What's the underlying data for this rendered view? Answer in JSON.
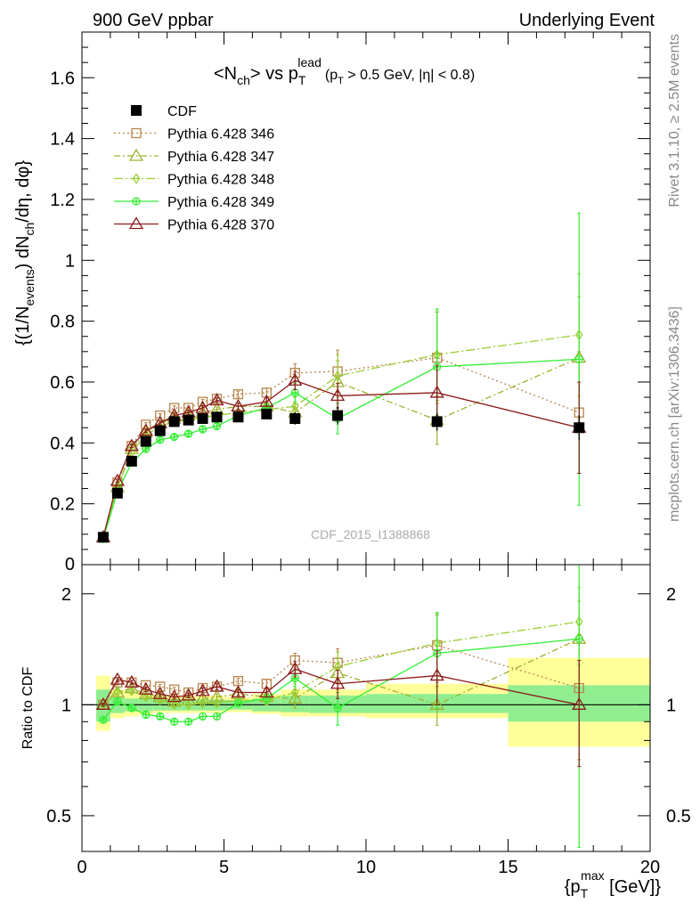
{
  "header": {
    "left": "900 GeV ppbar",
    "right": "Underlying Event"
  },
  "side_labels": {
    "rivet": "Rivet 3.1.10, ≥ 2.5M events",
    "mcplots": "mcplots.cern.ch [arXiv:1306.3436]"
  },
  "watermark": "CDF_2015_I1388868",
  "colors": {
    "cdf": "#000000",
    "p346": "#b8864b",
    "p347": "#a0b030",
    "p348": "#9acd32",
    "p349": "#33ee33",
    "p370": "#8b1a1a",
    "band_inner": "#90ee90",
    "band_outer": "#ffff99"
  },
  "chart_data": [
    {
      "type": "scatter",
      "title_main": "<N",
      "title_sub_ch": "ch",
      "title_vs": "> vs p",
      "title_sub_T": "T",
      "title_sup_lead": "lead",
      "title_cut_open": "(p",
      "title_cut_T": "T",
      "title_cut_rest": " > 0.5 GeV, |η| < 0.8)",
      "ylabel_parts": [
        "{(1/N",
        "events",
        ") dN",
        "ch",
        "/dη, dφ}"
      ],
      "xlim": [
        0,
        20
      ],
      "ylim": [
        0,
        1.75
      ],
      "yticks": [
        0.2,
        0.4,
        0.6,
        0.8,
        1,
        1.2,
        1.4,
        1.6
      ],
      "ytick_labels": [
        "0.2",
        "0.4",
        "0.6",
        "0.8",
        "1",
        "1.2",
        "1.4",
        "1.6"
      ],
      "bottom_tick_label": "0",
      "legend_position": "top-left",
      "series": [
        {
          "name": "CDF",
          "key": "cdf",
          "marker": "square-filled",
          "x": [
            0.75,
            1.25,
            1.75,
            2.25,
            2.75,
            3.25,
            3.75,
            4.25,
            4.75,
            5.5,
            6.5,
            7.5,
            9.0,
            12.5,
            17.5
          ],
          "y": [
            0.09,
            0.235,
            0.34,
            0.405,
            0.44,
            0.47,
            0.475,
            0.48,
            0.485,
            0.485,
            0.495,
            0.48,
            0.49,
            0.47,
            0.45
          ],
          "err": [
            0.005,
            0.008,
            0.01,
            0.012,
            0.012,
            0.012,
            0.012,
            0.012,
            0.012,
            0.014,
            0.016,
            0.02,
            0.03,
            0.03,
            0.04
          ]
        },
        {
          "name": "Pythia 6.428 346",
          "key": "p346",
          "marker": "square-open",
          "dash": "2,3",
          "x": [
            0.75,
            1.25,
            1.75,
            2.25,
            2.75,
            3.25,
            3.75,
            4.25,
            4.75,
            5.5,
            6.5,
            7.5,
            9.0,
            12.5,
            17.5
          ],
          "y": [
            0.09,
            0.27,
            0.39,
            0.46,
            0.49,
            0.515,
            0.515,
            0.535,
            0.545,
            0.56,
            0.565,
            0.63,
            0.635,
            0.68,
            0.5
          ],
          "err": [
            0.002,
            0.004,
            0.005,
            0.006,
            0.006,
            0.007,
            0.007,
            0.008,
            0.008,
            0.01,
            0.015,
            0.03,
            0.07,
            0.15,
            0.2
          ]
        },
        {
          "name": "Pythia 6.428 347",
          "key": "p347",
          "marker": "triangle-open",
          "dash": "7,3,2,3",
          "x": [
            0.75,
            1.25,
            1.75,
            2.25,
            2.75,
            3.25,
            3.75,
            4.25,
            4.75,
            5.5,
            6.5,
            7.5,
            9.0,
            12.5,
            17.5
          ],
          "y": [
            0.09,
            0.255,
            0.38,
            0.435,
            0.465,
            0.48,
            0.49,
            0.5,
            0.51,
            0.52,
            0.52,
            0.5,
            0.6,
            0.475,
            0.68
          ],
          "err": [
            0.002,
            0.004,
            0.005,
            0.006,
            0.006,
            0.007,
            0.007,
            0.008,
            0.008,
            0.01,
            0.015,
            0.03,
            0.07,
            0.08,
            0.2
          ]
        },
        {
          "name": "Pythia 6.428 348",
          "key": "p348",
          "marker": "diamond-open",
          "dash": "10,3,2,3",
          "x": [
            0.75,
            1.25,
            1.75,
            2.25,
            2.75,
            3.25,
            3.75,
            4.25,
            4.75,
            5.5,
            6.5,
            7.5,
            9.0,
            12.5,
            17.5
          ],
          "y": [
            0.09,
            0.255,
            0.37,
            0.425,
            0.455,
            0.47,
            0.475,
            0.485,
            0.49,
            0.5,
            0.51,
            0.52,
            0.62,
            0.69,
            0.755
          ],
          "err": [
            0.002,
            0.004,
            0.005,
            0.006,
            0.006,
            0.007,
            0.007,
            0.008,
            0.008,
            0.01,
            0.015,
            0.03,
            0.07,
            0.15,
            0.2
          ]
        },
        {
          "name": "Pythia 6.428 349",
          "key": "p349",
          "marker": "circle-cross",
          "x": [
            0.75,
            1.25,
            1.75,
            2.25,
            2.75,
            3.25,
            3.75,
            4.25,
            4.75,
            5.5,
            6.5,
            7.5,
            9.0,
            12.5,
            17.5
          ],
          "y": [
            0.085,
            0.24,
            0.335,
            0.38,
            0.41,
            0.42,
            0.43,
            0.445,
            0.455,
            0.49,
            0.515,
            0.565,
            0.48,
            0.65,
            0.675
          ],
          "err": [
            0.002,
            0.004,
            0.005,
            0.006,
            0.006,
            0.007,
            0.007,
            0.008,
            0.008,
            0.01,
            0.015,
            0.03,
            0.05,
            0.19,
            0.48
          ]
        },
        {
          "name": "Pythia 6.428 370",
          "key": "p370",
          "marker": "triangle-open",
          "x": [
            0.75,
            1.25,
            1.75,
            2.25,
            2.75,
            3.25,
            3.75,
            4.25,
            4.75,
            5.5,
            6.5,
            7.5,
            9.0,
            12.5,
            17.5
          ],
          "y": [
            0.09,
            0.275,
            0.39,
            0.44,
            0.465,
            0.49,
            0.5,
            0.515,
            0.54,
            0.52,
            0.535,
            0.605,
            0.555,
            0.565,
            0.45
          ],
          "err": [
            0.002,
            0.004,
            0.005,
            0.006,
            0.006,
            0.007,
            0.007,
            0.008,
            0.008,
            0.01,
            0.015,
            0.03,
            0.04,
            0.09,
            0.15
          ]
        }
      ]
    },
    {
      "type": "scatter",
      "ylabel": "Ratio to CDF",
      "xlabel_open": "{p",
      "xlabel_sub": "T",
      "xlabel_sup": "max",
      "xlabel_close": " [GeV]}",
      "xlim": [
        0,
        20
      ],
      "ylim": [
        0.4,
        2.4
      ],
      "y_scale": "log",
      "xticks": [
        0,
        5,
        10,
        15,
        20
      ],
      "xtick_labels": [
        "0",
        "5",
        "10",
        "15",
        "20"
      ],
      "yticks": [
        0.5,
        1,
        2
      ],
      "ytick_labels": [
        "0.5",
        "1",
        "2"
      ],
      "reference_line": 1,
      "bands": {
        "x_edges": [
          [
            0.5,
            1.0
          ],
          [
            1.0,
            1.5
          ],
          [
            1.5,
            2.0
          ],
          [
            2.0,
            2.5
          ],
          [
            2.5,
            3.0
          ],
          [
            3.0,
            3.5
          ],
          [
            3.5,
            4.0
          ],
          [
            4.0,
            4.5
          ],
          [
            4.5,
            5.0
          ],
          [
            5.0,
            6.0
          ],
          [
            6.0,
            7.0
          ],
          [
            7.0,
            8.0
          ],
          [
            8.0,
            10.0
          ],
          [
            10.0,
            15.0
          ],
          [
            15.0,
            20.0
          ]
        ],
        "inner": [
          [
            0.9,
            1.1
          ],
          [
            0.95,
            1.05
          ],
          [
            0.96,
            1.04
          ],
          [
            0.96,
            1.04
          ],
          [
            0.965,
            1.035
          ],
          [
            0.965,
            1.035
          ],
          [
            0.965,
            1.035
          ],
          [
            0.965,
            1.035
          ],
          [
            0.965,
            1.035
          ],
          [
            0.97,
            1.03
          ],
          [
            0.96,
            1.04
          ],
          [
            0.955,
            1.06
          ],
          [
            0.95,
            1.06
          ],
          [
            0.95,
            1.07
          ],
          [
            0.9,
            1.13
          ]
        ],
        "outer": [
          [
            0.85,
            1.2
          ],
          [
            0.92,
            1.1
          ],
          [
            0.93,
            1.08
          ],
          [
            0.94,
            1.07
          ],
          [
            0.95,
            1.06
          ],
          [
            0.95,
            1.06
          ],
          [
            0.95,
            1.06
          ],
          [
            0.95,
            1.06
          ],
          [
            0.95,
            1.06
          ],
          [
            0.955,
            1.05
          ],
          [
            0.945,
            1.07
          ],
          [
            0.93,
            1.1
          ],
          [
            0.93,
            1.1
          ],
          [
            0.92,
            1.14
          ],
          [
            0.77,
            1.34
          ]
        ]
      },
      "series": [
        {
          "name": "Pythia 6.428 346",
          "key": "p346",
          "marker": "square-open",
          "dash": "2,3",
          "x": [
            0.75,
            1.25,
            1.75,
            2.25,
            2.75,
            3.25,
            3.75,
            4.25,
            4.75,
            5.5,
            6.5,
            7.5,
            9.0,
            12.5,
            17.5
          ],
          "y": [
            1.0,
            1.15,
            1.15,
            1.13,
            1.12,
            1.1,
            1.08,
            1.11,
            1.12,
            1.16,
            1.14,
            1.32,
            1.3,
            1.45,
            1.11
          ],
          "err": [
            0.01,
            0.015,
            0.015,
            0.015,
            0.015,
            0.015,
            0.015,
            0.02,
            0.02,
            0.02,
            0.03,
            0.06,
            0.12,
            0.3,
            0.4
          ]
        },
        {
          "name": "Pythia 6.428 347",
          "key": "p347",
          "marker": "triangle-open",
          "dash": "7,3,2,3",
          "x": [
            0.75,
            1.25,
            1.75,
            2.25,
            2.75,
            3.25,
            3.75,
            4.25,
            4.75,
            5.5,
            6.5,
            7.5,
            9.0,
            12.5,
            17.5
          ],
          "y": [
            1.0,
            1.08,
            1.11,
            1.07,
            1.05,
            1.02,
            1.03,
            1.04,
            1.05,
            1.07,
            1.05,
            1.04,
            1.22,
            1.0,
            1.51
          ],
          "err": [
            0.01,
            0.015,
            0.015,
            0.015,
            0.015,
            0.015,
            0.015,
            0.02,
            0.02,
            0.02,
            0.03,
            0.06,
            0.12,
            0.12,
            0.4
          ]
        },
        {
          "name": "Pythia 6.428 348",
          "key": "p348",
          "marker": "diamond-open",
          "dash": "10,3,2,3",
          "x": [
            0.75,
            1.25,
            1.75,
            2.25,
            2.75,
            3.25,
            3.75,
            4.25,
            4.75,
            5.5,
            6.5,
            7.5,
            9.0,
            12.5,
            17.5
          ],
          "y": [
            1.0,
            1.08,
            1.09,
            1.05,
            1.03,
            1.0,
            1.0,
            1.01,
            1.01,
            1.03,
            1.03,
            1.08,
            1.27,
            1.47,
            1.68
          ],
          "err": [
            0.01,
            0.015,
            0.015,
            0.015,
            0.015,
            0.015,
            0.015,
            0.02,
            0.02,
            0.02,
            0.03,
            0.06,
            0.12,
            0.3,
            0.4
          ]
        },
        {
          "name": "Pythia 6.428 349",
          "key": "p349",
          "marker": "circle-cross",
          "x": [
            0.75,
            1.25,
            1.75,
            2.25,
            2.75,
            3.25,
            3.75,
            4.25,
            4.75,
            5.5,
            6.5,
            7.5,
            9.0,
            12.5,
            17.5
          ],
          "y": [
            0.91,
            1.02,
            0.98,
            0.94,
            0.93,
            0.9,
            0.9,
            0.93,
            0.93,
            1.01,
            1.04,
            1.18,
            0.98,
            1.38,
            1.51
          ],
          "err": [
            0.01,
            0.015,
            0.015,
            0.015,
            0.015,
            0.015,
            0.015,
            0.02,
            0.02,
            0.02,
            0.03,
            0.06,
            0.1,
            0.4,
            1.1
          ]
        },
        {
          "name": "Pythia 6.428 370",
          "key": "p370",
          "marker": "triangle-open",
          "x": [
            0.75,
            1.25,
            1.75,
            2.25,
            2.75,
            3.25,
            3.75,
            4.25,
            4.75,
            5.5,
            6.5,
            7.5,
            9.0,
            12.5,
            17.5
          ],
          "y": [
            1.0,
            1.17,
            1.15,
            1.1,
            1.07,
            1.05,
            1.06,
            1.09,
            1.12,
            1.08,
            1.08,
            1.25,
            1.14,
            1.2,
            1.0
          ],
          "err": [
            0.01,
            0.015,
            0.015,
            0.015,
            0.015,
            0.015,
            0.015,
            0.02,
            0.02,
            0.02,
            0.03,
            0.06,
            0.1,
            0.2,
            0.32
          ]
        }
      ]
    }
  ]
}
